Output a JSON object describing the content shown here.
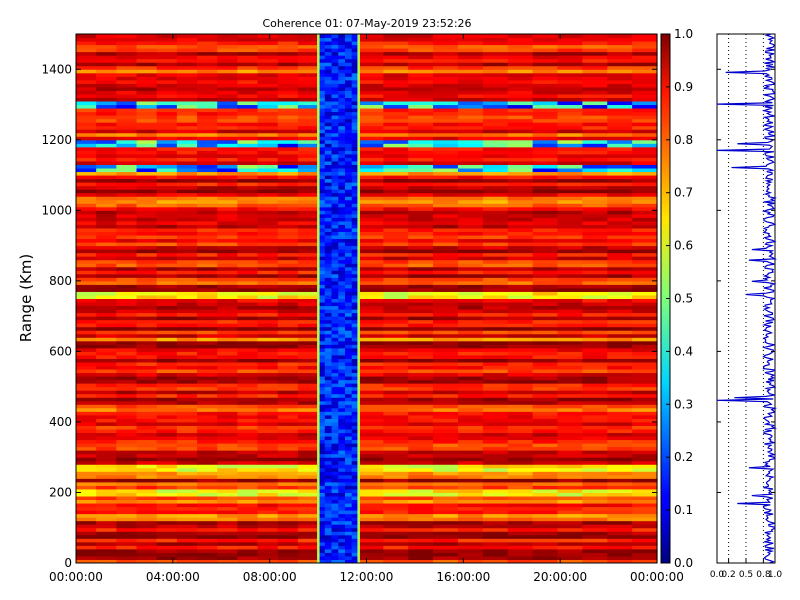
{
  "chart_data": [
    {
      "type": "heatmap",
      "title": "Coherence 01: 07-May-2019 23:52:26",
      "xlabel": "",
      "ylabel": "Range (Km)",
      "xlim": [
        "00:00:00",
        "24:00:00"
      ],
      "x_ticks": [
        "00:00:00",
        "04:00:00",
        "08:00:00",
        "12:00:00",
        "16:00:00",
        "20:00:00",
        "00:00:00"
      ],
      "ylim": [
        0,
        1500
      ],
      "y_ticks": [
        "0",
        "200",
        "400",
        "600",
        "800",
        "1000",
        "1200",
        "1400"
      ],
      "colorscale": "jet",
      "clim": [
        0,
        1
      ],
      "colorbar_ticks": [
        "0.0",
        "0.1",
        "0.2",
        "0.3",
        "0.4",
        "0.5",
        "0.6",
        "0.7",
        "0.8",
        "0.9",
        "1.0"
      ],
      "low_coherence_time_band": [
        "10:00:00",
        "11:40:00"
      ],
      "low_coherence_value": 0.15,
      "background_value_range": [
        0.8,
        1.0
      ],
      "notable_low_rows_km": [
        1120,
        1190,
        1300
      ],
      "notable_mid_rows_km": [
        200,
        270,
        760
      ]
    },
    {
      "type": "line",
      "title": "",
      "xlabel": "",
      "ylabel": "",
      "xlim": [
        0,
        1
      ],
      "x_ticks": [
        "0.0",
        "0.2",
        "0.5",
        "0.8",
        "1.0"
      ],
      "x_tick_values": [
        0.0,
        0.2,
        0.5,
        0.8,
        1.0
      ],
      "ylim": [
        0,
        1500
      ],
      "grid": "x-dotted",
      "color": "#0000cc",
      "typical_value": 0.9,
      "dips": [
        {
          "range_km": 1390,
          "value": 0.15
        },
        {
          "range_km": 1300,
          "value": 0.0
        },
        {
          "range_km": 1190,
          "value": 0.35
        },
        {
          "range_km": 1170,
          "value": 0.0
        },
        {
          "range_km": 1120,
          "value": 0.25
        },
        {
          "range_km": 890,
          "value": 0.6
        },
        {
          "range_km": 860,
          "value": 0.55
        },
        {
          "range_km": 800,
          "value": 0.6
        },
        {
          "range_km": 760,
          "value": 0.5
        },
        {
          "range_km": 470,
          "value": 0.3
        },
        {
          "range_km": 460,
          "value": 0.0
        },
        {
          "range_km": 270,
          "value": 0.55
        },
        {
          "range_km": 190,
          "value": 0.6
        },
        {
          "range_km": 170,
          "value": 0.35
        }
      ]
    }
  ]
}
